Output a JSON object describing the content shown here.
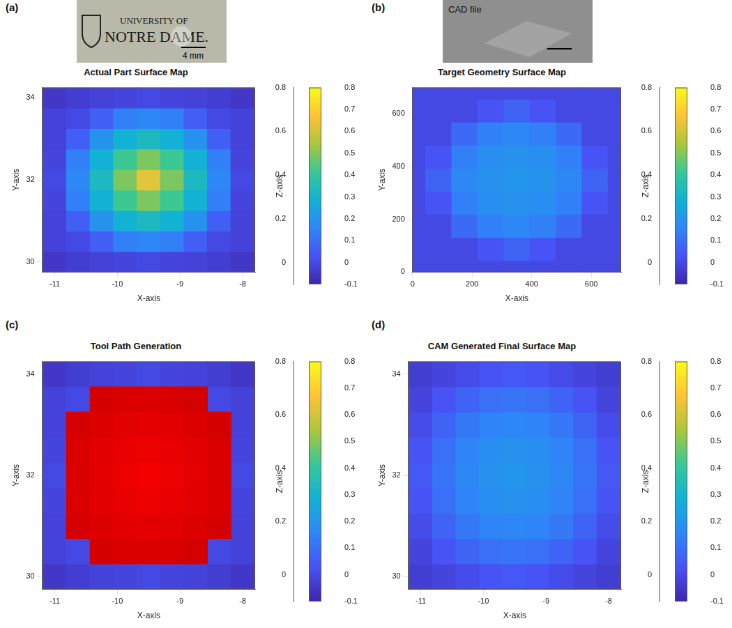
{
  "chart_data": [
    {
      "panel": "(a)",
      "type": "heatmap",
      "title": "Actual Part Surface Map",
      "image": {
        "text": [
          "UNIVERSITY OF",
          "NOTRE DAME."
        ],
        "scale_bar": "4 mm"
      },
      "x_label": "X-axis",
      "y_label": "Y-axis",
      "z_label": "Z-axis",
      "grid": true,
      "x": [
        -11,
        -10.625,
        -10.25,
        -9.875,
        -9.5,
        -9.125,
        -8.75,
        -8.375,
        -8
      ],
      "y": [
        30,
        30.5,
        31,
        31.5,
        32,
        32.5,
        33,
        33.5,
        34
      ],
      "values": [
        [
          -0.05,
          -0.03,
          -0.02,
          -0.01,
          0.0,
          -0.01,
          -0.02,
          -0.03,
          -0.05
        ],
        [
          -0.02,
          0.0,
          0.06,
          0.14,
          0.16,
          0.14,
          0.06,
          0.0,
          -0.02
        ],
        [
          -0.02,
          0.06,
          0.19,
          0.29,
          0.33,
          0.29,
          0.19,
          0.06,
          -0.02
        ],
        [
          -0.01,
          0.14,
          0.29,
          0.42,
          0.49,
          0.42,
          0.29,
          0.14,
          -0.01
        ],
        [
          0.0,
          0.16,
          0.33,
          0.49,
          0.63,
          0.49,
          0.33,
          0.16,
          0.0
        ],
        [
          -0.01,
          0.14,
          0.29,
          0.42,
          0.49,
          0.42,
          0.29,
          0.14,
          -0.01
        ],
        [
          -0.02,
          0.06,
          0.19,
          0.29,
          0.33,
          0.29,
          0.19,
          0.06,
          -0.02
        ],
        [
          -0.02,
          0.0,
          0.06,
          0.14,
          0.16,
          0.14,
          0.06,
          0.0,
          -0.02
        ],
        [
          -0.05,
          -0.03,
          -0.02,
          -0.01,
          0.0,
          -0.01,
          -0.02,
          -0.03,
          -0.05
        ]
      ],
      "xlim": [
        -11.2,
        -7.8
      ],
      "xticks": [
        -11,
        -10,
        -9,
        -8
      ],
      "ylim": [
        29.75,
        34.25
      ],
      "yticks": [
        30,
        32,
        34
      ],
      "zlim": [
        -0.1,
        0.8
      ],
      "zticks": [
        0,
        0.2,
        0.4,
        0.6,
        0.8
      ],
      "color_range": [
        -0.1,
        0.8
      ],
      "color_ticks": [
        -0.1,
        0,
        0.1,
        0.2,
        0.3,
        0.4,
        0.5,
        0.6,
        0.7,
        0.8
      ]
    },
    {
      "panel": "(b)",
      "type": "heatmap",
      "title": "Target Geometry Surface Map",
      "image": {
        "caption": "CAD file"
      },
      "x_label": "X-axis",
      "y_label": "Y-axis",
      "z_label": "Z-axis",
      "grid": true,
      "x": [
        0,
        87.5,
        175,
        262.5,
        350,
        437.5,
        525,
        612.5,
        700
      ],
      "y": [
        0,
        87.5,
        175,
        262.5,
        350,
        437.5,
        525,
        612.5,
        700
      ],
      "values": [
        [
          0,
          0,
          0,
          0,
          0,
          0,
          0,
          0,
          0
        ],
        [
          0,
          0,
          0,
          0.03,
          0.07,
          0.03,
          0,
          0,
          0
        ],
        [
          0,
          0,
          0.09,
          0.14,
          0.16,
          0.14,
          0.09,
          0,
          0
        ],
        [
          0,
          0.03,
          0.14,
          0.18,
          0.19,
          0.18,
          0.14,
          0.03,
          0
        ],
        [
          0,
          0.07,
          0.16,
          0.19,
          0.2,
          0.19,
          0.16,
          0.07,
          0
        ],
        [
          0,
          0.03,
          0.14,
          0.18,
          0.19,
          0.18,
          0.14,
          0.03,
          0
        ],
        [
          0,
          0,
          0.09,
          0.14,
          0.16,
          0.14,
          0.09,
          0,
          0
        ],
        [
          0,
          0,
          0,
          0.03,
          0.07,
          0.03,
          0,
          0,
          0
        ],
        [
          0,
          0,
          0,
          0,
          0,
          0,
          0,
          0,
          0
        ]
      ],
      "xlim": [
        0,
        700
      ],
      "xticks": [
        0,
        200,
        400,
        600
      ],
      "ylim": [
        0,
        700
      ],
      "yticks": [
        0,
        200,
        400,
        600
      ],
      "zlim": [
        -0.1,
        0.8
      ],
      "zticks": [
        0,
        0.2,
        0.4,
        0.6,
        0.8
      ],
      "color_range": [
        -0.1,
        0.8
      ],
      "color_ticks": [
        -0.1,
        0,
        0.1,
        0.2,
        0.3,
        0.4,
        0.5,
        0.6,
        0.7,
        0.8
      ]
    },
    {
      "panel": "(c)",
      "type": "heatmap",
      "title": "Tool Path Generation",
      "x_label": "X-axis",
      "y_label": "Y-axis",
      "z_label": "Z-axis",
      "grid": true,
      "x": [
        -11,
        -10.625,
        -10.25,
        -9.875,
        -9.5,
        -9.125,
        -8.75,
        -8.375,
        -8
      ],
      "y": [
        30,
        30.5,
        31,
        31.5,
        32,
        32.5,
        33,
        33.5,
        34
      ],
      "values": [
        [
          -0.05,
          -0.03,
          -0.02,
          -0.01,
          0.0,
          -0.01,
          -0.02,
          -0.03,
          -0.05
        ],
        [
          -0.02,
          0.0,
          0.06,
          0.14,
          0.16,
          0.14,
          0.06,
          0.0,
          -0.02
        ],
        [
          -0.02,
          0.06,
          0.19,
          0.29,
          0.33,
          0.29,
          0.19,
          0.06,
          -0.02
        ],
        [
          -0.01,
          0.14,
          0.29,
          0.42,
          0.49,
          0.42,
          0.29,
          0.14,
          -0.01
        ],
        [
          0.0,
          0.16,
          0.33,
          0.49,
          0.63,
          0.49,
          0.33,
          0.16,
          0.0
        ],
        [
          -0.01,
          0.14,
          0.29,
          0.42,
          0.49,
          0.42,
          0.29,
          0.14,
          -0.01
        ],
        [
          -0.02,
          0.06,
          0.19,
          0.29,
          0.33,
          0.29,
          0.19,
          0.06,
          -0.02
        ],
        [
          -0.02,
          0.0,
          0.06,
          0.14,
          0.16,
          0.14,
          0.06,
          0.0,
          -0.02
        ],
        [
          -0.05,
          -0.03,
          -0.02,
          -0.01,
          0.0,
          -0.01,
          -0.02,
          -0.03,
          -0.05
        ]
      ],
      "tool_path": {
        "color": "#ff0000",
        "values": [
          [
            null,
            null,
            null,
            null,
            null,
            null,
            null,
            null,
            null
          ],
          [
            null,
            null,
            0.06,
            0.14,
            0.16,
            0.14,
            0.06,
            null,
            null
          ],
          [
            null,
            0.06,
            0.19,
            0.29,
            0.33,
            0.29,
            0.19,
            0.06,
            null
          ],
          [
            null,
            0.14,
            0.29,
            0.42,
            0.49,
            0.42,
            0.29,
            0.14,
            null
          ],
          [
            null,
            0.16,
            0.33,
            0.49,
            0.63,
            0.49,
            0.33,
            0.16,
            null
          ],
          [
            null,
            0.14,
            0.29,
            0.42,
            0.49,
            0.42,
            0.29,
            0.14,
            null
          ],
          [
            null,
            0.06,
            0.19,
            0.29,
            0.33,
            0.29,
            0.19,
            0.06,
            null
          ],
          [
            null,
            null,
            0.06,
            0.14,
            0.16,
            0.14,
            0.06,
            null,
            null
          ],
          [
            null,
            null,
            null,
            null,
            null,
            null,
            null,
            null,
            null
          ]
        ]
      },
      "xlim": [
        -11.2,
        -7.8
      ],
      "xticks": [
        -11,
        -10,
        -9,
        -8
      ],
      "ylim": [
        29.75,
        34.25
      ],
      "yticks": [
        30,
        32,
        34
      ],
      "zlim": [
        -0.1,
        0.8
      ],
      "zticks": [
        0,
        0.2,
        0.4,
        0.6,
        0.8
      ],
      "color_range": [
        -0.1,
        0.8
      ],
      "color_ticks": [
        -0.1,
        0,
        0.1,
        0.2,
        0.3,
        0.4,
        0.5,
        0.6,
        0.7,
        0.8
      ]
    },
    {
      "panel": "(d)",
      "type": "heatmap",
      "title": "CAM Generated Final Surface Map",
      "x_label": "X-axis",
      "y_label": "Y-axis",
      "z_label": "Z-axis",
      "grid": true,
      "x": [
        -11,
        -10.625,
        -10.25,
        -9.875,
        -9.5,
        -9.125,
        -8.75,
        -8.375,
        -8
      ],
      "y": [
        30,
        30.5,
        31,
        31.5,
        32,
        32.5,
        33,
        33.5,
        34
      ],
      "values": [
        [
          -0.03,
          -0.01,
          0.01,
          0.03,
          0.04,
          0.03,
          0.01,
          -0.01,
          -0.03
        ],
        [
          -0.01,
          0.03,
          0.07,
          0.1,
          0.11,
          0.1,
          0.07,
          0.03,
          -0.01
        ],
        [
          0.01,
          0.07,
          0.12,
          0.15,
          0.16,
          0.15,
          0.12,
          0.07,
          0.01
        ],
        [
          0.03,
          0.1,
          0.15,
          0.18,
          0.19,
          0.18,
          0.15,
          0.1,
          0.03
        ],
        [
          0.04,
          0.11,
          0.16,
          0.19,
          0.2,
          0.19,
          0.16,
          0.11,
          0.04
        ],
        [
          0.03,
          0.1,
          0.15,
          0.18,
          0.19,
          0.18,
          0.15,
          0.1,
          0.03
        ],
        [
          0.01,
          0.07,
          0.12,
          0.15,
          0.16,
          0.15,
          0.12,
          0.07,
          0.01
        ],
        [
          -0.01,
          0.03,
          0.07,
          0.1,
          0.11,
          0.1,
          0.07,
          0.03,
          -0.01
        ],
        [
          -0.03,
          -0.01,
          0.01,
          0.03,
          0.04,
          0.03,
          0.01,
          -0.01,
          -0.03
        ]
      ],
      "xlim": [
        -11.2,
        -7.8
      ],
      "xticks": [
        -11,
        -10,
        -9,
        -8
      ],
      "ylim": [
        29.75,
        34.25
      ],
      "yticks": [
        30,
        32,
        34
      ],
      "zlim": [
        -0.1,
        0.8
      ],
      "zticks": [
        0,
        0.2,
        0.4,
        0.6,
        0.8
      ],
      "color_range": [
        -0.1,
        0.8
      ],
      "color_ticks": [
        -0.1,
        0,
        0.1,
        0.2,
        0.3,
        0.4,
        0.5,
        0.6,
        0.7,
        0.8
      ]
    }
  ]
}
